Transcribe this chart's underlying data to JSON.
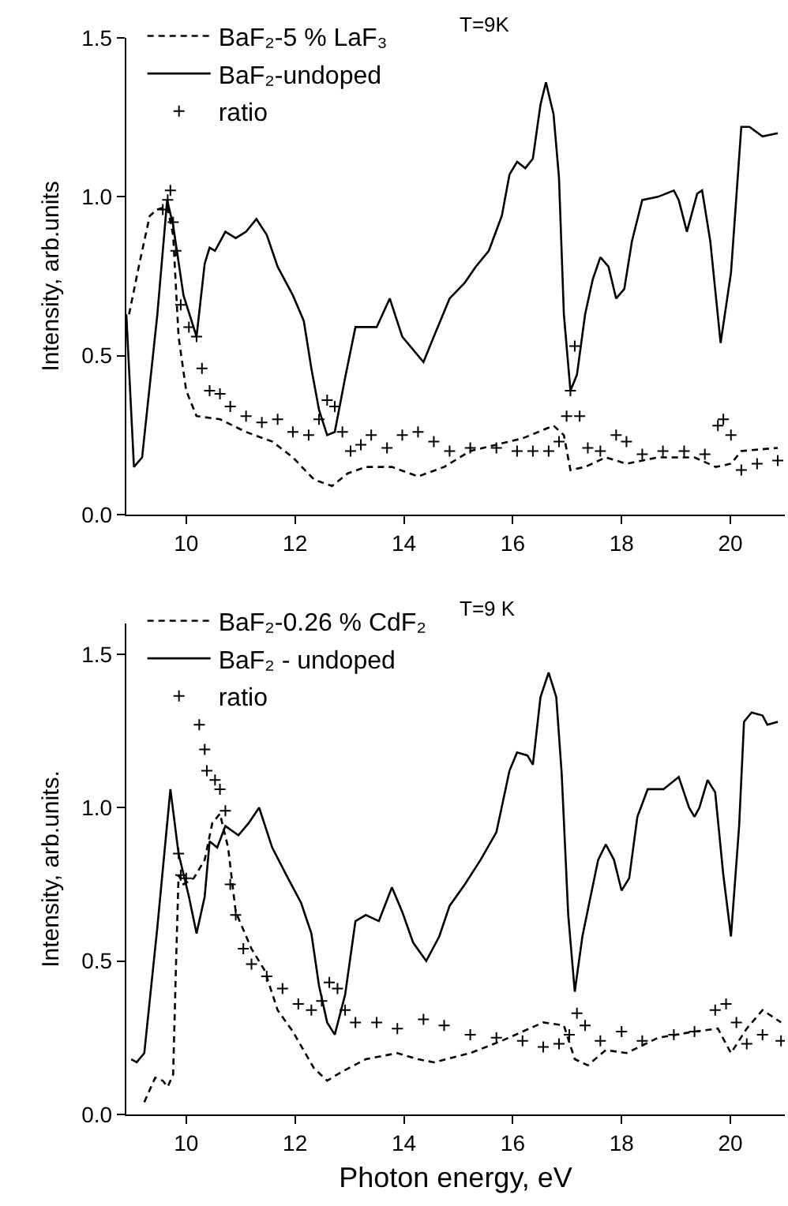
{
  "chart_data": [
    {
      "type": "line",
      "ylabel": "Intensity, arb.units",
      "annotations": [
        "T=9K"
      ],
      "legend": "top left",
      "grid": false,
      "xlim": [
        8.9,
        21
      ],
      "xticks": [
        10,
        12,
        14,
        16,
        18,
        20
      ],
      "ylim": [
        0,
        1.5
      ],
      "yticks": [
        {
          "value": 0,
          "label": "0.0"
        },
        {
          "value": 0.5,
          "label": "0.5"
        },
        {
          "value": 1,
          "label": "1.0"
        },
        {
          "value": 1.5,
          "label": "1.5"
        }
      ],
      "series": [
        {
          "name": "BaF₂-5 % LaF₃",
          "line_style": "dashed",
          "marker": "none",
          "color": "#000000",
          "x": [
            8.95,
            9.14,
            9.33,
            9.47,
            9.65,
            9.76,
            9.86,
            10.0,
            10.19,
            10.62,
            11.1,
            11.58,
            11.96,
            12.35,
            12.68,
            12.97,
            13.3,
            13.78,
            14.26,
            14.74,
            15.22,
            15.7,
            16.18,
            16.47,
            16.75,
            16.94,
            17.06,
            17.33,
            17.71,
            18.09,
            18.67,
            19.34,
            19.73,
            20.01,
            20.2,
            20.87
          ],
          "values": [
            0.63,
            0.79,
            0.94,
            0.96,
            0.97,
            0.88,
            0.56,
            0.39,
            0.31,
            0.3,
            0.26,
            0.23,
            0.18,
            0.11,
            0.09,
            0.13,
            0.15,
            0.15,
            0.12,
            0.15,
            0.2,
            0.22,
            0.24,
            0.26,
            0.28,
            0.25,
            0.14,
            0.15,
            0.18,
            0.16,
            0.18,
            0.18,
            0.15,
            0.16,
            0.2,
            0.21
          ]
        },
        {
          "name": "BaF₂-undoped",
          "line_style": "solid",
          "marker": "none",
          "color": "#000000",
          "x": [
            8.9,
            9.04,
            9.19,
            9.47,
            9.65,
            9.76,
            9.95,
            10.19,
            10.34,
            10.43,
            10.53,
            10.72,
            10.91,
            11.1,
            11.29,
            11.48,
            11.68,
            11.96,
            12.16,
            12.3,
            12.44,
            12.59,
            12.73,
            12.92,
            13.11,
            13.3,
            13.5,
            13.74,
            13.97,
            14.36,
            14.55,
            14.84,
            15.12,
            15.32,
            15.56,
            15.8,
            15.94,
            16.08,
            16.23,
            16.37,
            16.51,
            16.61,
            16.75,
            16.85,
            16.94,
            17.06,
            17.18,
            17.33,
            17.47,
            17.61,
            17.76,
            17.9,
            18.05,
            18.19,
            18.38,
            18.67,
            18.96,
            19.05,
            19.2,
            19.39,
            19.48,
            19.63,
            19.82,
            20.01,
            20.2,
            20.35,
            20.59,
            20.87
          ],
          "values": [
            0.63,
            0.15,
            0.18,
            0.63,
            0.99,
            0.91,
            0.69,
            0.56,
            0.79,
            0.84,
            0.83,
            0.89,
            0.87,
            0.89,
            0.93,
            0.88,
            0.78,
            0.69,
            0.61,
            0.46,
            0.33,
            0.25,
            0.26,
            0.43,
            0.59,
            0.59,
            0.59,
            0.68,
            0.56,
            0.48,
            0.56,
            0.68,
            0.73,
            0.78,
            0.83,
            0.94,
            1.07,
            1.11,
            1.09,
            1.12,
            1.29,
            1.36,
            1.26,
            1.06,
            0.63,
            0.39,
            0.44,
            0.63,
            0.74,
            0.81,
            0.78,
            0.68,
            0.71,
            0.86,
            0.99,
            1.0,
            1.02,
            0.99,
            0.89,
            1.01,
            1.02,
            0.86,
            0.54,
            0.76,
            1.22,
            1.22,
            1.19,
            1.2
          ]
        },
        {
          "name": "ratio",
          "type": "scatter",
          "marker": "cross",
          "color": "#000000",
          "x": [
            9.57,
            9.66,
            9.71,
            9.76,
            9.81,
            9.9,
            10.05,
            10.19,
            10.29,
            10.43,
            10.62,
            10.81,
            11.1,
            11.39,
            11.68,
            11.96,
            12.25,
            12.44,
            12.59,
            12.73,
            12.87,
            13.02,
            13.21,
            13.4,
            13.69,
            13.97,
            14.26,
            14.55,
            14.84,
            15.22,
            15.7,
            16.08,
            16.37,
            16.66,
            16.85,
            16.99,
            17.06,
            17.14,
            17.23,
            17.38,
            17.61,
            17.9,
            18.09,
            18.38,
            18.76,
            19.15,
            19.53,
            19.77,
            19.87,
            20.01,
            20.2,
            20.49,
            20.87
          ],
          "values": [
            0.96,
            0.99,
            1.02,
            0.92,
            0.83,
            0.66,
            0.59,
            0.56,
            0.46,
            0.39,
            0.38,
            0.34,
            0.31,
            0.29,
            0.3,
            0.26,
            0.25,
            0.3,
            0.36,
            0.34,
            0.26,
            0.2,
            0.22,
            0.25,
            0.21,
            0.25,
            0.26,
            0.23,
            0.2,
            0.21,
            0.21,
            0.2,
            0.2,
            0.2,
            0.23,
            0.31,
            0.39,
            0.53,
            0.31,
            0.21,
            0.2,
            0.25,
            0.23,
            0.19,
            0.2,
            0.2,
            0.19,
            0.28,
            0.3,
            0.25,
            0.14,
            0.16,
            0.17
          ]
        }
      ]
    },
    {
      "type": "line",
      "xlabel": "Photon energy, eV",
      "ylabel": "Intensity, arb.units.",
      "annotations": [
        "T=9 K"
      ],
      "legend": "top left",
      "grid": false,
      "xlim": [
        8.9,
        21
      ],
      "xticks": [
        10,
        12,
        14,
        16,
        18,
        20
      ],
      "ylim": [
        0,
        1.6
      ],
      "yticks": [
        {
          "value": 0,
          "label": "0.0"
        },
        {
          "value": 0.5,
          "label": "0.5"
        },
        {
          "value": 1,
          "label": "1.0"
        },
        {
          "value": 1.5,
          "label": "1.5"
        }
      ],
      "series": [
        {
          "name": "BaF₂-0.26 % CdF₂",
          "line_style": "dashed",
          "marker": "none",
          "color": "#000000",
          "x": [
            9.23,
            9.43,
            9.57,
            9.66,
            9.76,
            9.81,
            9.86,
            9.95,
            10.14,
            10.34,
            10.48,
            10.62,
            10.77,
            10.91,
            11.2,
            11.44,
            11.68,
            11.96,
            12.35,
            12.59,
            12.87,
            13.3,
            13.88,
            14.26,
            14.55,
            15.22,
            15.8,
            16.18,
            16.56,
            16.94,
            17.14,
            17.38,
            17.71,
            18.09,
            18.67,
            19.34,
            19.77,
            20.01,
            20.3,
            20.59,
            20.93
          ],
          "values": [
            0.04,
            0.12,
            0.11,
            0.09,
            0.13,
            0.47,
            0.78,
            0.75,
            0.77,
            0.83,
            0.95,
            0.98,
            0.87,
            0.66,
            0.54,
            0.47,
            0.34,
            0.27,
            0.15,
            0.11,
            0.14,
            0.18,
            0.2,
            0.18,
            0.17,
            0.2,
            0.24,
            0.27,
            0.3,
            0.29,
            0.18,
            0.16,
            0.21,
            0.2,
            0.25,
            0.27,
            0.28,
            0.2,
            0.28,
            0.34,
            0.3
          ]
        },
        {
          "name": "BaF₂ - undoped",
          "line_style": "solid",
          "marker": "none",
          "color": "#000000",
          "x": [
            8.99,
            9.09,
            9.23,
            9.47,
            9.71,
            9.86,
            10.05,
            10.19,
            10.34,
            10.43,
            10.57,
            10.72,
            10.96,
            11.15,
            11.34,
            11.58,
            11.87,
            12.11,
            12.3,
            12.44,
            12.59,
            12.73,
            12.92,
            13.11,
            13.3,
            13.54,
            13.78,
            13.97,
            14.17,
            14.41,
            14.65,
            14.84,
            15.12,
            15.41,
            15.7,
            15.94,
            16.08,
            16.27,
            16.37,
            16.51,
            16.66,
            16.8,
            16.9,
            17.02,
            17.14,
            17.28,
            17.43,
            17.57,
            17.71,
            17.86,
            18.0,
            18.14,
            18.29,
            18.48,
            18.77,
            19.05,
            19.24,
            19.34,
            19.43,
            19.58,
            19.72,
            19.87,
            20.01,
            20.16,
            20.25,
            20.39,
            20.59,
            20.68,
            20.87
          ],
          "values": [
            0.18,
            0.17,
            0.2,
            0.61,
            1.06,
            0.85,
            0.71,
            0.59,
            0.71,
            0.89,
            0.87,
            0.94,
            0.91,
            0.95,
            1.0,
            0.87,
            0.77,
            0.69,
            0.59,
            0.42,
            0.3,
            0.26,
            0.39,
            0.63,
            0.65,
            0.63,
            0.74,
            0.66,
            0.56,
            0.5,
            0.58,
            0.68,
            0.75,
            0.83,
            0.92,
            1.12,
            1.18,
            1.17,
            1.14,
            1.36,
            1.44,
            1.36,
            1.11,
            0.65,
            0.4,
            0.58,
            0.71,
            0.83,
            0.88,
            0.83,
            0.73,
            0.77,
            0.97,
            1.06,
            1.06,
            1.1,
            1.0,
            0.97,
            1.0,
            1.09,
            1.05,
            0.78,
            0.58,
            0.94,
            1.28,
            1.31,
            1.3,
            1.27,
            1.28
          ]
        },
        {
          "name": "ratio",
          "type": "scatter",
          "marker": "cross",
          "color": "#000000",
          "x": [
            9.86,
            9.9,
            10.0,
            10.24,
            10.34,
            10.38,
            10.53,
            10.62,
            10.72,
            10.81,
            10.91,
            11.05,
            11.2,
            11.48,
            11.77,
            12.06,
            12.3,
            12.49,
            12.63,
            12.78,
            12.92,
            13.11,
            13.5,
            13.88,
            14.36,
            14.74,
            15.22,
            15.7,
            16.18,
            16.56,
            16.85,
            17.04,
            17.18,
            17.33,
            17.61,
            18.0,
            18.38,
            18.96,
            19.34,
            19.72,
            19.92,
            20.11,
            20.3,
            20.59,
            20.93
          ],
          "values": [
            0.85,
            0.78,
            0.77,
            1.27,
            1.19,
            1.12,
            1.09,
            1.06,
            0.99,
            0.75,
            0.65,
            0.54,
            0.49,
            0.45,
            0.41,
            0.36,
            0.34,
            0.37,
            0.43,
            0.41,
            0.34,
            0.3,
            0.3,
            0.28,
            0.31,
            0.29,
            0.26,
            0.25,
            0.24,
            0.22,
            0.23,
            0.26,
            0.33,
            0.29,
            0.24,
            0.27,
            0.24,
            0.26,
            0.27,
            0.34,
            0.36,
            0.3,
            0.23,
            0.26,
            0.24
          ]
        }
      ]
    }
  ]
}
